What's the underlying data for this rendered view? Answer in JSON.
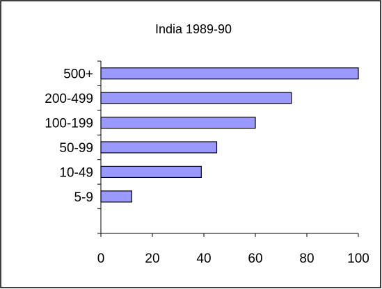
{
  "chart_data": {
    "type": "bar",
    "orientation": "horizontal",
    "title": "India 1989-90",
    "xlabel": "",
    "ylabel": "",
    "categories": [
      "500+",
      "200-499",
      "100-199",
      "50-99",
      "10-49",
      "5-9"
    ],
    "values": [
      100,
      74,
      60,
      45,
      39,
      12
    ],
    "xlim": [
      0,
      100
    ],
    "x_ticks": [
      "0",
      "20",
      "40",
      "60",
      "80",
      "100"
    ],
    "grid": false,
    "legend": "none",
    "bar_color": "#9999ff"
  }
}
